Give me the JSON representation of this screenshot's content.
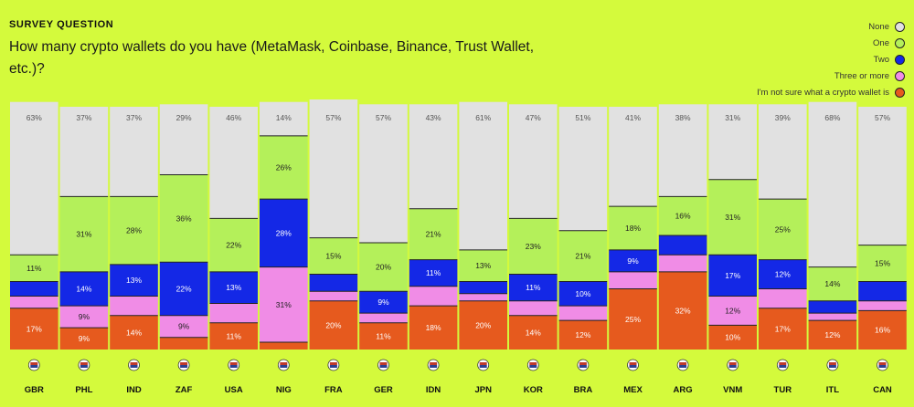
{
  "header": {
    "kicker": "SURVEY QUESTION",
    "question": "How many crypto wallets do you have (MetaMask, Coinbase, Binance, Trust Wallet, etc.)?"
  },
  "legend": [
    {
      "label": "None",
      "color": "#e1e1e1"
    },
    {
      "label": "One",
      "color": "#b4f05a"
    },
    {
      "label": "Two",
      "color": "#1428e6"
    },
    {
      "label": "Three or more",
      "color": "#f08ce6"
    },
    {
      "label": "I'm not sure what a crypto wallet is",
      "color": "#e65a1e"
    }
  ],
  "chart_data": {
    "type": "bar",
    "stacked": true,
    "categories": [
      "GBR",
      "PHL",
      "IND",
      "ZAF",
      "USA",
      "NIG",
      "FRA",
      "GER",
      "IDN",
      "JPN",
      "KOR",
      "BRA",
      "MEX",
      "ARG",
      "VNM",
      "TUR",
      "ITL",
      "CAN"
    ],
    "series": [
      {
        "name": "I'm not sure what a crypto wallet is",
        "color": "#e65a1e",
        "values": [
          17,
          9,
          14,
          5,
          11,
          3,
          20,
          11,
          18,
          20,
          14,
          12,
          25,
          32,
          10,
          17,
          12,
          16
        ],
        "labels": [
          "17%",
          "9%",
          "14%",
          "",
          "11%",
          "",
          "20%",
          "11%",
          "18%",
          "20%",
          "14%",
          "12%",
          "25%",
          "32%",
          "10%",
          "17%",
          "12%",
          ""
        ]
      },
      {
        "name": "Three or more",
        "color": "#f08ce6",
        "values": [
          5,
          9,
          8,
          9,
          8,
          31,
          4,
          4,
          8,
          3,
          6,
          6,
          7,
          7,
          12,
          8,
          3,
          4
        ],
        "labels": [
          "",
          "9%",
          "",
          "9%",
          "",
          "31%",
          "",
          "",
          "",
          "",
          "",
          "",
          "",
          "",
          "12%",
          "",
          "",
          ""
        ]
      },
      {
        "name": "Two",
        "color": "#1428e6",
        "values": [
          6,
          14,
          13,
          22,
          13,
          28,
          7,
          9,
          11,
          5,
          11,
          10,
          9,
          8,
          17,
          12,
          5,
          8
        ],
        "labels": [
          "",
          "14%",
          "13%",
          "22%",
          "13%",
          "28%",
          "",
          "9%",
          "11%",
          "",
          "11%",
          "10%",
          "9%",
          "",
          "17%",
          "12%",
          "",
          ""
        ]
      },
      {
        "name": "One",
        "color": "#b4f05a",
        "values": [
          11,
          31,
          28,
          36,
          22,
          26,
          15,
          20,
          21,
          13,
          23,
          21,
          18,
          16,
          31,
          25,
          14,
          15
        ],
        "labels": [
          "11%",
          "31%",
          "28%",
          "36%",
          "22%",
          "26%",
          "15%",
          "20%",
          "21%",
          "13%",
          "23%",
          "21%",
          "18%",
          "16%",
          "31%",
          "25%",
          "14%",
          "15%"
        ]
      },
      {
        "name": "None",
        "color": "#e1e1e1",
        "values": [
          63,
          37,
          37,
          29,
          46,
          14,
          57,
          57,
          43,
          61,
          47,
          51,
          41,
          38,
          31,
          39,
          68,
          57
        ],
        "labels": [
          "63%",
          "37%",
          "37%",
          "29%",
          "46%",
          "14%",
          "57%",
          "57%",
          "43%",
          "61%",
          "47%",
          "51%",
          "41%",
          "38%",
          "31%",
          "39%",
          "68%",
          "57%"
        ]
      }
    ],
    "extra_labels": [
      {
        "category": "CAN",
        "series": "I'm not sure what a crypto wallet is",
        "text": "16%"
      }
    ],
    "ylim": [
      0,
      100
    ],
    "title": "How many crypto wallets do you have (MetaMask, Coinbase, Binance, Trust Wallet, etc.)?",
    "xlabel": "",
    "ylabel": "",
    "legend_position": "top-right"
  }
}
